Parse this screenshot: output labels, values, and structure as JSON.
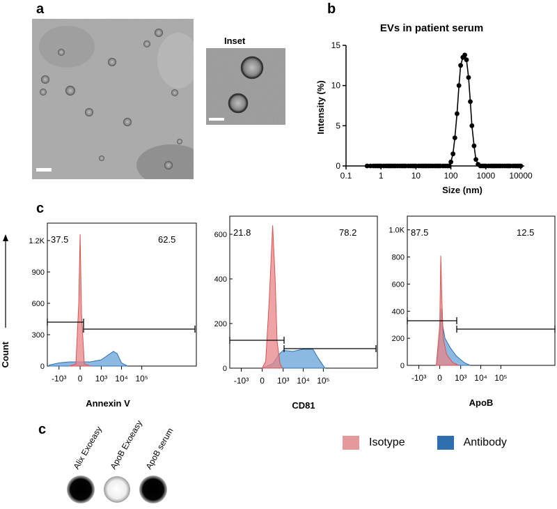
{
  "panel_labels": {
    "a": "a",
    "b": "b",
    "c_top": "c",
    "c_bottom": "c"
  },
  "micrographs": {
    "inset_label": "Inset"
  },
  "colors": {
    "isotype": "#e8868a",
    "antibody": "#5b9bd5",
    "antibody_dark": "#2e6fb0",
    "isotype_dark": "#d9534f"
  },
  "chart_data": [
    {
      "type": "line",
      "title": "EVs in patient serum",
      "xlabel": "Size (nm)",
      "ylabel": "Intensity  (%)",
      "xscale": "log",
      "xlim": [
        0.1,
        10000
      ],
      "ylim": [
        0,
        15
      ],
      "xticks": [
        "0.1",
        "1",
        "10",
        "100",
        "1000",
        "10000"
      ],
      "yticks": [
        "0",
        "5",
        "10",
        "15"
      ],
      "markers": "filled-circle",
      "series": [
        {
          "x": [
            0.4,
            0.5,
            0.6,
            0.7,
            0.8,
            0.9,
            1,
            1.2,
            1.4,
            1.6,
            1.8,
            2,
            2.3,
            2.6,
            3,
            3.5,
            4,
            4.5,
            5,
            6,
            7,
            8,
            9,
            10,
            12,
            14,
            16,
            18,
            20,
            23,
            26,
            30,
            35,
            40,
            45,
            50,
            60,
            70,
            80,
            90,
            100,
            115,
            130,
            150,
            170,
            190,
            220,
            250,
            280,
            320,
            360,
            400,
            460,
            520,
            600,
            700,
            800,
            900,
            1000,
            1200,
            1400,
            1600,
            1800,
            2000,
            2300,
            2600,
            3000,
            3500,
            4000,
            4500,
            5000,
            6000,
            7000,
            8000,
            9000,
            10000
          ],
          "y": [
            0,
            0,
            0,
            0,
            0,
            0,
            0,
            0,
            0,
            0,
            0,
            0,
            0,
            0,
            0,
            0,
            0,
            0,
            0,
            0,
            0,
            0,
            0,
            0,
            0,
            0,
            0,
            0,
            0,
            0,
            0,
            0,
            0,
            0,
            0,
            0,
            0,
            0,
            0,
            0,
            0.5,
            1.5,
            3.5,
            6.5,
            10,
            12.5,
            13.5,
            13.8,
            13.2,
            11,
            8,
            5,
            2.5,
            0.8,
            0.2,
            0,
            0,
            0,
            0,
            0,
            0,
            0,
            0,
            0,
            0,
            0,
            0,
            0,
            0,
            0,
            0,
            0,
            0,
            0,
            0,
            0
          ]
        }
      ]
    },
    {
      "type": "area",
      "xlabel": "Annexin V",
      "ylabel": "Count",
      "xscale": "biexponential",
      "xticks": [
        "-10³",
        "0",
        "10³",
        "10⁴",
        "10⁵"
      ],
      "yticks": [
        "0",
        "300",
        "600",
        "900",
        "1.2K"
      ],
      "ylim": [
        0,
        1300
      ],
      "gate_percentages": [
        "37.5",
        "62.5"
      ],
      "series": [
        {
          "name": "Isotype",
          "x": [
            -300,
            -120,
            -40,
            0,
            40,
            120,
            300
          ],
          "y": [
            0,
            20,
            600,
            1260,
            500,
            20,
            0
          ]
        },
        {
          "name": "Antibody",
          "x": [
            -3000,
            -1000,
            -300,
            0,
            300,
            1000,
            2000,
            4000,
            6000,
            10000,
            20000
          ],
          "y": [
            10,
            30,
            40,
            40,
            40,
            60,
            100,
            140,
            120,
            30,
            0
          ]
        }
      ]
    },
    {
      "type": "area",
      "xlabel": "CD81",
      "xscale": "biexponential",
      "xticks": [
        "-10³",
        "0",
        "10³",
        "10⁴",
        "10⁵"
      ],
      "yticks": [
        "0",
        "200",
        "400",
        "600"
      ],
      "ylim": [
        0,
        650
      ],
      "gate_percentages": [
        "21.8",
        "78.2"
      ],
      "series": [
        {
          "name": "Isotype",
          "x": [
            0,
            100,
            200,
            300,
            400,
            500,
            700,
            900
          ],
          "y": [
            0,
            30,
            300,
            640,
            400,
            120,
            20,
            0
          ]
        },
        {
          "name": "Antibody",
          "x": [
            0,
            300,
            600,
            1000,
            3000,
            10000,
            30000,
            60000,
            120000
          ],
          "y": [
            0,
            20,
            60,
            80,
            75,
            85,
            85,
            40,
            0
          ]
        }
      ]
    },
    {
      "type": "area",
      "xlabel": "ApoB",
      "xscale": "biexponential",
      "xticks": [
        "-10³",
        "0",
        "10³",
        "10⁴",
        "10⁵"
      ],
      "yticks": [
        "0",
        "200",
        "400",
        "600",
        "800",
        "1.0K"
      ],
      "ylim": [
        0,
        1050
      ],
      "gate_percentages": [
        "87.5",
        "12.5"
      ],
      "series": [
        {
          "name": "Isotype",
          "x": [
            -100,
            0,
            30,
            60,
            100,
            200,
            400,
            800
          ],
          "y": [
            0,
            300,
            810,
            500,
            200,
            80,
            20,
            0
          ]
        },
        {
          "name": "Antibody",
          "x": [
            -100,
            0,
            40,
            80,
            150,
            300,
            600,
            1500,
            3000
          ],
          "y": [
            0,
            200,
            420,
            300,
            200,
            130,
            70,
            20,
            0
          ]
        }
      ]
    }
  ],
  "legend": {
    "isotype_label": "Isotype",
    "antibody_label": "Antibody"
  },
  "dot_blot": {
    "labels": [
      "Alix Exoeasy",
      "ApoB Exoeasy",
      "ApoB serum"
    ]
  }
}
